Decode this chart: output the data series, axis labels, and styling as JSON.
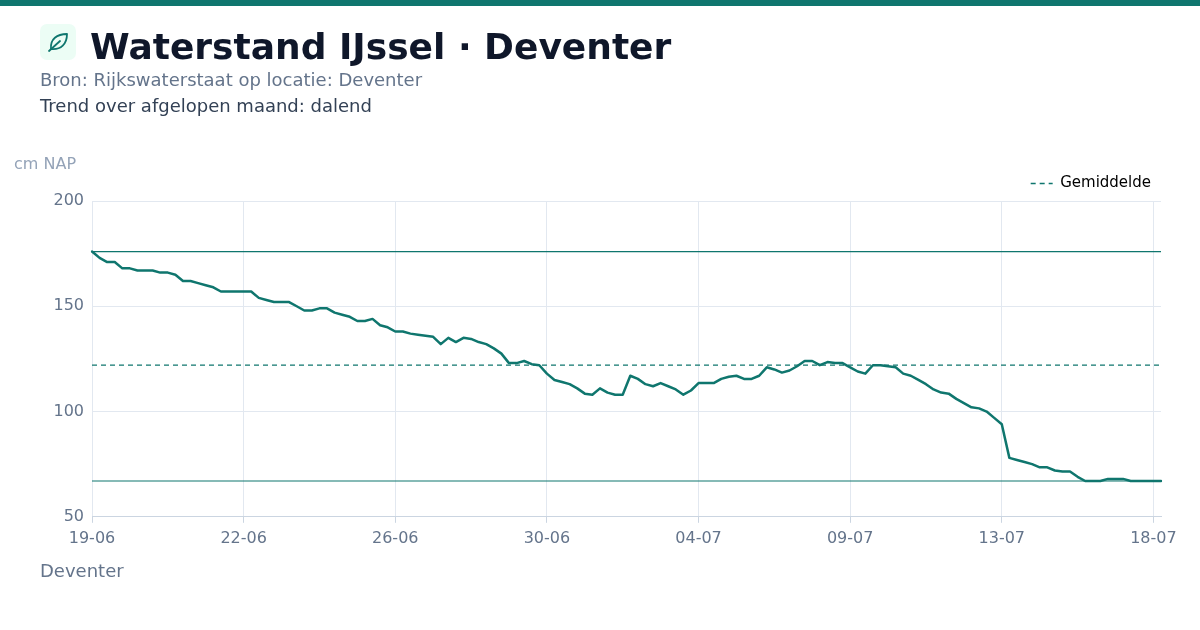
{
  "chart_data": {
    "type": "line",
    "title": "Waterstand IJssel · Deventer",
    "subtitle": "Bron: Rijkswaterstaat op locatie: Deventer",
    "ylabel": "cm NAP",
    "annotations": [
      "Trend over afgelopen maand: dalend",
      "Deventer"
    ],
    "categories": [
      "19-06",
      null,
      null,
      null,
      null,
      null,
      null,
      null,
      null,
      null,
      null,
      null,
      null,
      null,
      null,
      null,
      null,
      null,
      null,
      null,
      "22-06",
      null,
      null,
      null,
      null,
      null,
      null,
      null,
      null,
      null,
      null,
      null,
      null,
      null,
      null,
      null,
      null,
      null,
      null,
      null,
      "26-06",
      null,
      null,
      null,
      null,
      null,
      null,
      null,
      null,
      null,
      null,
      null,
      null,
      null,
      null,
      null,
      null,
      null,
      null,
      null,
      "30-06",
      null,
      null,
      null,
      null,
      null,
      null,
      null,
      null,
      null,
      null,
      null,
      null,
      null,
      null,
      null,
      null,
      null,
      null,
      null,
      "04-07",
      null,
      null,
      null,
      null,
      null,
      null,
      null,
      null,
      null,
      null,
      null,
      null,
      null,
      null,
      null,
      null,
      null,
      null,
      null,
      "09-07",
      null,
      null,
      null,
      null,
      null,
      null,
      null,
      null,
      null,
      null,
      null,
      null,
      null,
      null,
      null,
      null,
      null,
      null,
      null,
      "13-07",
      null,
      null,
      null,
      null,
      null,
      null,
      null,
      null,
      null,
      null,
      null,
      null,
      null,
      null,
      null,
      null,
      null,
      null,
      null,
      "18-07",
      null
    ],
    "series": [
      {
        "color": "#0f766e",
        "values": [
          176,
          173,
          171,
          171,
          168,
          168,
          167,
          167,
          167,
          166,
          166,
          165,
          162,
          162,
          161,
          160,
          159,
          157,
          157,
          157,
          157,
          157,
          154,
          153,
          152,
          152,
          152,
          150,
          148,
          148,
          149,
          149,
          147,
          146,
          145,
          143,
          143,
          144,
          141,
          140,
          138,
          138,
          137,
          136.5,
          136,
          135.5,
          132,
          135,
          133,
          135,
          134.5,
          133,
          132,
          130,
          127.5,
          123,
          123,
          124,
          122.5,
          122,
          118,
          115,
          114,
          113,
          111,
          108.5,
          108,
          111,
          109,
          108,
          108,
          117,
          115.5,
          113,
          112,
          113.5,
          112,
          110.5,
          108,
          110,
          113.5,
          113.5,
          113.5,
          115.5,
          116.5,
          117,
          115.5,
          115.5,
          117,
          121,
          120,
          118.5,
          119.5,
          121.5,
          124,
          124,
          122,
          123.5,
          123,
          123,
          121,
          119,
          118,
          122,
          122,
          121.5,
          121,
          118,
          117,
          115,
          113,
          110.5,
          109,
          108.5,
          106,
          104,
          102,
          101.5,
          100,
          97,
          94,
          78,
          77,
          76,
          75,
          73.5,
          73.5,
          72,
          71.5,
          71.5,
          69,
          67,
          67,
          67,
          68,
          68,
          68,
          67,
          67,
          67,
          67,
          67
        ]
      }
    ],
    "ylim": [
      50,
      200
    ],
    "yticks": [
      50,
      100,
      150,
      200
    ],
    "grid": true,
    "legend": "top right",
    "marker": "none",
    "ref_lines": [
      {
        "axis": "y",
        "value": 122,
        "label": "Gemiddelde",
        "color": "#0f766e",
        "line_style": "dashed"
      },
      {
        "axis": "y",
        "value": 176,
        "color": "#0f766e"
      },
      {
        "axis": "y",
        "value": 67,
        "color": "#0f766e"
      }
    ]
  }
}
